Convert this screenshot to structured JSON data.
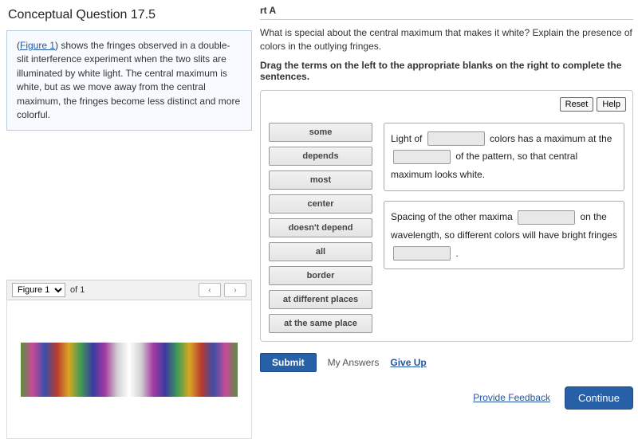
{
  "left": {
    "title": "Conceptual Question 17.5",
    "figure_link": "Figure 1",
    "prompt_after_link": ") shows the fringes observed in a double-slit interference experiment when the two slits are illuminated by white light. The central maximum is white, but as we move away from the central maximum, the fringes become less distinct and more colorful.",
    "figbar": {
      "select_label": "Figure 1",
      "of_text": "of 1",
      "prev": "‹",
      "next": "›"
    },
    "fringe_colors": [
      "#5a8f3c",
      "#c94a9a",
      "#3a4fa8",
      "#b83a2f",
      "#d8a723",
      "#3f9a55",
      "#3a3aa0",
      "#a33aa0",
      "#d0d0d0",
      "#ffffff",
      "#d0d0d0",
      "#a33aa0",
      "#3a3aa0",
      "#3f9a55",
      "#d8a723",
      "#b83a2f",
      "#3a4fa8",
      "#c94a9a",
      "#5a8f3c"
    ]
  },
  "part": {
    "label": "rt A",
    "question": "What is special about the central maximum that makes it white? Explain the presence of colors in the outlying fringes.",
    "instruction": "Drag the terms on the left to the appropriate blanks on the right to complete the sentences.",
    "reset": "Reset",
    "help": "Help",
    "terms": [
      "some",
      "depends",
      "most",
      "center",
      "doesn't depend",
      "all",
      "border",
      "at different places",
      "at the same place"
    ],
    "sentence1": {
      "t1": "Light of ",
      "t2": " colors has a maximum at the ",
      "t3": " of the pattern, so that central maximum looks white."
    },
    "sentence2": {
      "t1": "Spacing of the other maxima ",
      "t2": " on the wavelength, so different colors will have bright fringes ",
      "t3": " ."
    },
    "submit": "Submit",
    "my_answers": "My Answers",
    "give_up": "Give Up",
    "feedback": "Provide Feedback",
    "continue": "Continue"
  }
}
